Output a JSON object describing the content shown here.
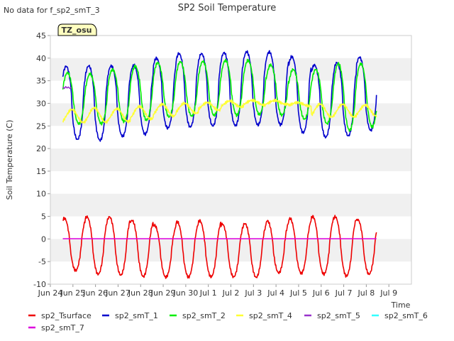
{
  "no_data_text": "No data for f_sp2_smT_3",
  "chart_data": {
    "type": "line",
    "title": "SP2 Soil Temperature",
    "xlabel": "Time",
    "ylabel": "Soil Temperature (C)",
    "ylim": [
      -10,
      45
    ],
    "yticks": [
      -10,
      -5,
      0,
      5,
      10,
      15,
      20,
      25,
      30,
      35,
      40,
      45
    ],
    "xlim": [
      0,
      16
    ],
    "xticks": [
      {
        "x": 0,
        "label": "Jun 24"
      },
      {
        "x": 1,
        "label": "Jun 25"
      },
      {
        "x": 2,
        "label": "Jun 26"
      },
      {
        "x": 3,
        "label": "Jun 27"
      },
      {
        "x": 4,
        "label": "Jun 28"
      },
      {
        "x": 5,
        "label": "Jun 29"
      },
      {
        "x": 6,
        "label": "Jun 30"
      },
      {
        "x": 7,
        "label": "Jul 1"
      },
      {
        "x": 8,
        "label": "Jul 2"
      },
      {
        "x": 9,
        "label": "Jul 3"
      },
      {
        "x": 10,
        "label": "Jul 4"
      },
      {
        "x": 11,
        "label": "Jul 5"
      },
      {
        "x": 12,
        "label": "Jul 6"
      },
      {
        "x": 13,
        "label": "Jul 7"
      },
      {
        "x": 14,
        "label": "Jul 8"
      },
      {
        "x": 15,
        "label": "Jul 9"
      }
    ],
    "x_units": "days since Jun 24",
    "grid": "horizontal bands",
    "legend": "bottom",
    "annotation": "TZ_osu",
    "series": [
      {
        "name": "sp2_Tsurface",
        "color": "#ee0000",
        "kind": "sinusoid",
        "x_start": 0.55,
        "x_end": 14.45,
        "phase_peak": 0.62,
        "sharp": 1.3,
        "mins": [
          -7,
          -7.8,
          -8,
          -8.3,
          -8.5,
          -8.4,
          -8.4,
          -8.4,
          -8.5,
          -7.5,
          -7.6,
          -7.8,
          -8.2,
          -7.8,
          -7.5
        ],
        "maxs": [
          4.6,
          4.9,
          4.9,
          4.1,
          3.0,
          3.8,
          4.0,
          3.3,
          3.4,
          4.0,
          4.5,
          5.0,
          4.9,
          4.3,
          3.5
        ]
      },
      {
        "name": "sp2_smT_1",
        "color": "#0000cc",
        "kind": "sinusoid",
        "x_start": 0.55,
        "x_end": 14.45,
        "phase_peak": 0.7,
        "sharp": 1.6,
        "mins": [
          22,
          21.8,
          22.7,
          23.2,
          24.5,
          24.8,
          25,
          25.1,
          25.2,
          25.3,
          23.5,
          22.5,
          22.8,
          24,
          24.5
        ],
        "maxs": [
          38.2,
          38.3,
          38.3,
          38.4,
          40,
          41,
          41,
          41.2,
          41.4,
          41.4,
          40.3,
          38.5,
          39,
          40.2,
          40.4
        ]
      },
      {
        "name": "sp2_smT_2",
        "color": "#00ee00",
        "kind": "sinusoid",
        "x_start": 0.55,
        "x_end": 14.45,
        "phase_peak": 0.76,
        "sharp": 1.3,
        "mins": [
          25.5,
          25.5,
          26,
          26.3,
          27,
          27.2,
          27.3,
          27.4,
          27.5,
          27.4,
          26.5,
          25.5,
          24,
          24.8,
          26
        ],
        "maxs": [
          36.8,
          36.5,
          37.5,
          38.2,
          39,
          39.2,
          39.3,
          39.5,
          39.5,
          38.5,
          37.5,
          37.5,
          38.8,
          38.8,
          38.8
        ]
      },
      {
        "name": "sp2_smT_4",
        "color": "#ffff33",
        "kind": "sinusoid",
        "x_start": 0.55,
        "x_end": 14.45,
        "phase_peak": 0.95,
        "sharp": 1.0,
        "mins": [
          25.8,
          25.8,
          26,
          26.5,
          27.2,
          27.8,
          28.5,
          29.2,
          29.6,
          29.8,
          29.4,
          27,
          27,
          27.2,
          28
        ],
        "maxs": [
          28.6,
          29,
          28.8,
          29.3,
          29.8,
          30,
          30.2,
          30.5,
          30.7,
          30.6,
          30.2,
          29.8,
          29.8,
          29.6,
          29.2
        ]
      },
      {
        "name": "sp2_smT_5",
        "color": "#9933cc",
        "kind": "short",
        "points": [
          [
            0.55,
            33.6
          ],
          [
            0.62,
            33.3
          ],
          [
            0.68,
            33.7
          ],
          [
            0.74,
            33.4
          ],
          [
            0.8,
            33.6
          ],
          [
            0.86,
            33.3
          ],
          [
            0.92,
            33.5
          ]
        ]
      },
      {
        "name": "sp2_smT_6",
        "color": "#33ffff",
        "kind": "none"
      },
      {
        "name": "sp2_smT_7",
        "color": "#dd00dd",
        "kind": "flat",
        "x_start": 0.55,
        "x_end": 14.45,
        "value": 0.05
      }
    ]
  }
}
